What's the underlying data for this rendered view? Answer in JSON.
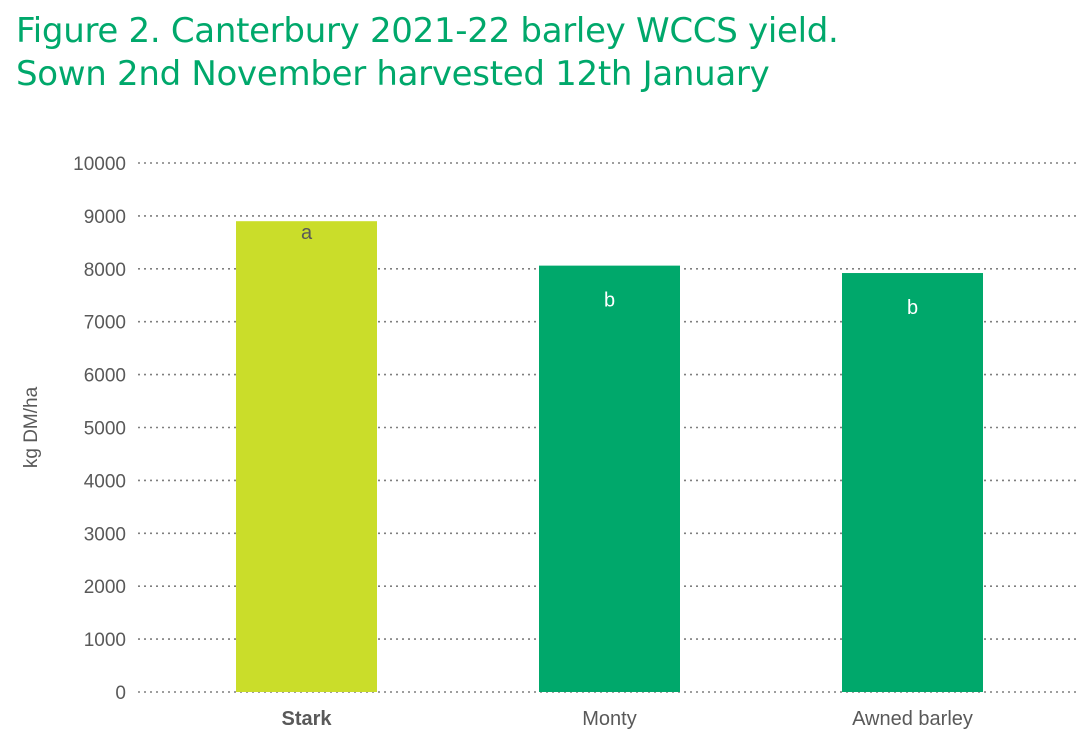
{
  "title_line1": "Figure 2. Canterbury 2021-22 barley WCCS yield.",
  "title_line2": "Sown 2nd November harvested 12th January",
  "colors": {
    "title": "#00a86b",
    "stark": "#cadd2a",
    "others": "#00a86b",
    "grid": "#7f7f7f",
    "text": "#595959"
  },
  "chart_data": {
    "type": "bar",
    "categories": [
      "Stark",
      "Monty",
      "Awned barley"
    ],
    "values": [
      8900,
      8060,
      7920
    ],
    "data_labels": [
      "a",
      "b",
      "b"
    ],
    "bar_colors": [
      "#cadd2a",
      "#00a86b",
      "#00a86b"
    ],
    "label_colors": [
      "#595959",
      "#ffffff",
      "#ffffff"
    ],
    "bold_categories": [
      "Stark"
    ],
    "xlabel": "",
    "ylabel": "kg DM/ha",
    "ylim": [
      0,
      10000
    ],
    "yticks": [
      0,
      1000,
      2000,
      3000,
      4000,
      5000,
      6000,
      7000,
      8000,
      9000,
      10000
    ],
    "grid": true,
    "grid_style": "dotted"
  }
}
